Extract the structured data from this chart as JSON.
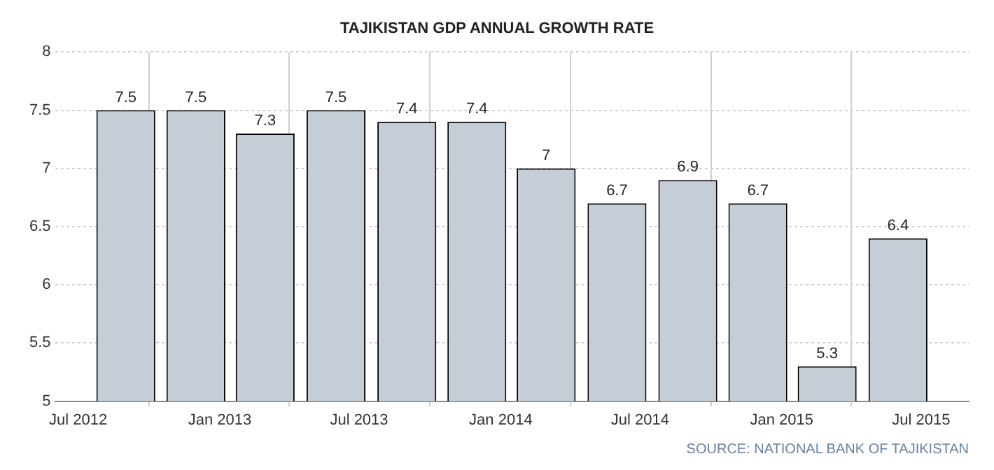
{
  "chart_data": {
    "type": "bar",
    "title": "TAJIKISTAN GDP ANNUAL GROWTH RATE",
    "x": [
      "2012-09",
      "2012-12",
      "2013-03",
      "2013-06",
      "2013-09",
      "2013-12",
      "2014-03",
      "2014-06",
      "2014-09",
      "2014-12",
      "2015-03",
      "2015-06"
    ],
    "values": [
      7.5,
      7.5,
      7.3,
      7.5,
      7.4,
      7.4,
      7,
      6.7,
      6.9,
      6.7,
      5.3,
      6.4
    ],
    "color": "#c5cdd6",
    "xlim": [
      "2012-06",
      "2015-09"
    ],
    "xticks": [
      {
        "value": "2012-07",
        "label": "Jul 2012"
      },
      {
        "value": "2013-01",
        "label": "Jan 2013"
      },
      {
        "value": "2013-07",
        "label": "Jul 2013"
      },
      {
        "value": "2014-01",
        "label": "Jan 2014"
      },
      {
        "value": "2014-07",
        "label": "Jul 2014"
      },
      {
        "value": "2015-01",
        "label": "Jan 2015"
      },
      {
        "value": "2015-07",
        "label": "Jul 2015"
      }
    ],
    "ylim": [
      5,
      8
    ],
    "yticks": [
      5,
      5.5,
      6,
      6.5,
      7,
      7.5,
      8
    ],
    "grid": true,
    "data_labels": true,
    "annotations": [
      "SOURCE: NATIONAL BANK OF TAJIKISTAN"
    ]
  }
}
